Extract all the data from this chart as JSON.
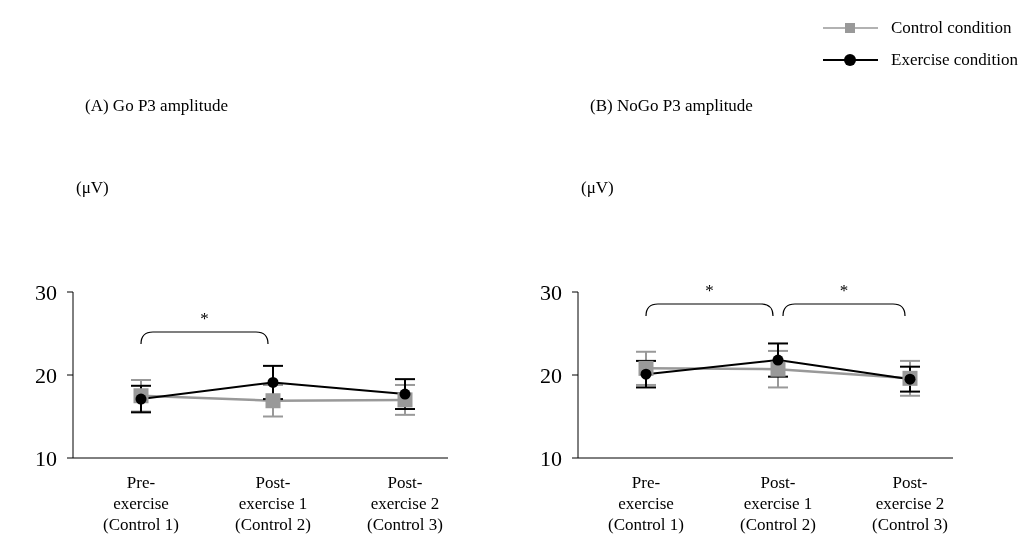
{
  "chart_data": [
    {
      "type": "line",
      "title": "(A) Go P3 amplitude",
      "ylabel": "(μV)",
      "categories": [
        "Pre-\nexercise\n(Control 1)",
        "Post-\nexercise 1\n(Control 2)",
        "Post-\nexercise 2\n(Control 3)"
      ],
      "series": [
        {
          "color": "#999999",
          "marker": "square",
          "values": [
            17.5,
            16.9,
            17.0
          ],
          "errors": [
            1.9,
            1.9,
            1.8
          ]
        },
        {
          "color": "#000000",
          "marker": "circle",
          "values": [
            17.1,
            19.1,
            17.7
          ],
          "errors": [
            1.6,
            2.0,
            1.8
          ]
        }
      ],
      "ylim": [
        10,
        30
      ],
      "yticks": [
        10,
        20,
        30
      ],
      "grid": false,
      "legend": false,
      "line_style": "solid",
      "annotations": [
        "*"
      ]
    },
    {
      "type": "line",
      "title": "(B) NoGo P3 amplitude",
      "ylabel": "(μV)",
      "categories": [
        "Pre-\nexercise\n(Control 1)",
        "Post-\nexercise 1\n(Control 2)",
        "Post-\nexercise 2\n(Control 3)"
      ],
      "series": [
        {
          "name": "Control condition",
          "color": "#999999",
          "marker": "square",
          "values": [
            20.8,
            20.7,
            19.6
          ],
          "errors": [
            2.0,
            2.2,
            2.1
          ]
        },
        {
          "name": "Exercise condition",
          "color": "#000000",
          "marker": "circle",
          "values": [
            20.1,
            21.8,
            19.5
          ],
          "errors": [
            1.6,
            2.0,
            1.5
          ]
        }
      ],
      "ylim": [
        10,
        30
      ],
      "yticks": [
        10,
        20,
        30
      ],
      "grid": false,
      "legend": "top right",
      "line_style": "solid",
      "annotations": [
        "*",
        "*"
      ]
    }
  ]
}
